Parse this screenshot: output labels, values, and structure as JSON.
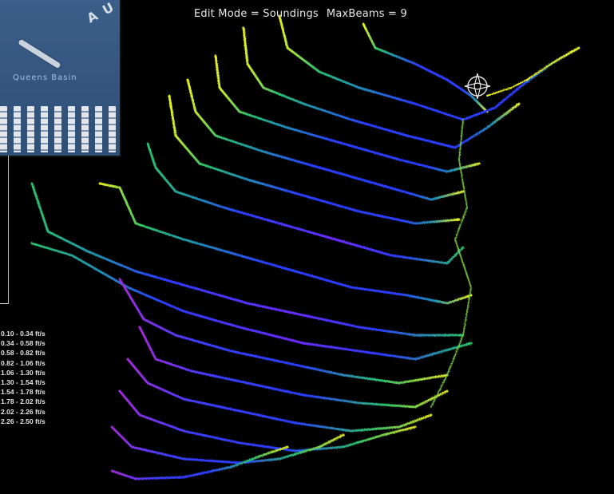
{
  "status": {
    "edit_mode_text": "Edit Mode = Soundings",
    "max_beams_text": "MaxBeams = 9"
  },
  "inset_map": {
    "label": "Queens Basin"
  },
  "legend": {
    "entries": [
      "0.10 - 0.34 ft/s",
      "0.34 - 0.58 ft/s",
      "0.58 - 0.82 ft/s",
      "0.82 - 1.06 ft/s",
      "1.06 - 1.30 ft/s",
      "1.30 - 1.54 ft/s",
      "1.54 - 1.78 ft/s",
      "1.78 - 2.02 ft/s",
      "2.02 - 2.26 ft/s",
      "2.26 - 2.50 ft/s"
    ]
  },
  "colors": {
    "background": "#000000",
    "slow": "#8a2be2",
    "mid_slow": "#2a3cff",
    "mid": "#1f8fb0",
    "mid_fast": "#2cc06a",
    "fast": "#e8f020"
  },
  "icons": {
    "cursor": "crosshair-compass-icon"
  }
}
